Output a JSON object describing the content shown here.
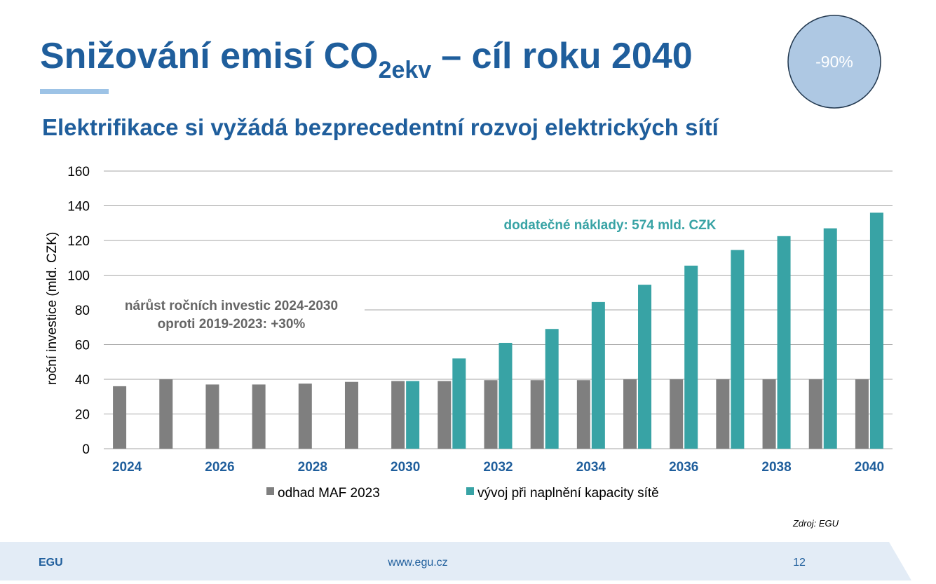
{
  "header": {
    "title": "Snižování emisí CO",
    "title_subscript": "2ekv",
    "title_end": "– cíl roku 2040",
    "badge": "-90%",
    "subtitle": "Elektrifikace si vyžádá bezprecedentní rozvoj elektrických sítí"
  },
  "chart_data": {
    "type": "bar",
    "y_label": "roční investice (mld. CZK)",
    "categories": [
      "2024",
      null,
      "2026",
      null,
      "2028",
      null,
      "2030",
      null,
      "2032",
      null,
      "2034",
      null,
      "2036",
      null,
      "2038",
      null,
      "2040"
    ],
    "series": [
      {
        "name": "odhad MAF 2023",
        "color": "#7f7f7f",
        "values": [
          36,
          40,
          37,
          37,
          37.5,
          38.5,
          39,
          39,
          39.5,
          39.5,
          39.5,
          40,
          40,
          40,
          40,
          40,
          40
        ]
      },
      {
        "name": "vývoj při naplnění kapacity sítě",
        "color": "#38a3a5",
        "values": [
          null,
          null,
          null,
          null,
          null,
          null,
          39,
          52,
          61,
          69,
          84.5,
          94.5,
          105.5,
          114.5,
          122.5,
          127,
          136
        ]
      }
    ],
    "ylim": [
      0,
      160
    ],
    "yticks": [
      0,
      20,
      40,
      60,
      80,
      100,
      120,
      140,
      160
    ],
    "grid": true,
    "annotations": [
      "dodatečné náklady: 574 mld. CZK",
      "nárůst ročních investic 2024-2030",
      "oproti 2019-2023: +30%"
    ],
    "source": "Zdroj: EGU"
  },
  "footer": {
    "left": "EGU",
    "center": "www.egu.cz",
    "page": "12"
  }
}
